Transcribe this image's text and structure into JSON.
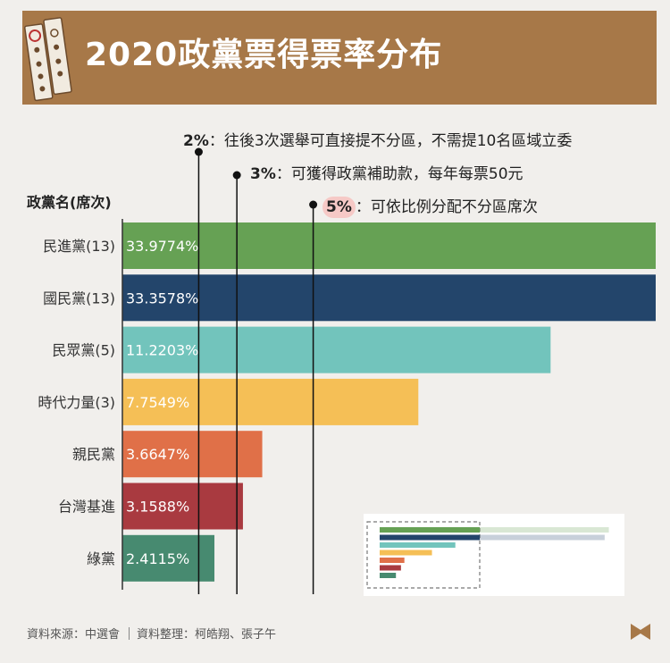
{
  "header": {
    "title": "2020政黨票得票率分布"
  },
  "thresholds": [
    {
      "pct": "2%",
      "text": "：往後3次選舉可直接提不分區，不需提10名區域立委"
    },
    {
      "pct": "3%",
      "text": "：可獲得政黨補助款，每年每票50元"
    },
    {
      "pct": "5%",
      "text": "：可依比例分配不分區席次"
    }
  ],
  "axis_title": "政黨名(席次)",
  "source": {
    "left": "資料來源：中選會",
    "right": "資料整理：柯皓翔、張子午"
  },
  "colors": {
    "header": "#a77848",
    "background": "#f1efec"
  },
  "chart_data": {
    "type": "bar",
    "orientation": "horizontal",
    "categories": [
      "民進黨(13)",
      "國民黨(13)",
      "民眾黨(5)",
      "時代力量(3)",
      "親民黨",
      "台灣基進",
      "綠黨"
    ],
    "values": [
      33.9774,
      33.3578,
      11.2203,
      7.7549,
      3.6647,
      3.1588,
      2.4115
    ],
    "value_labels": [
      "33.9774%",
      "33.3578%",
      "11.2203%",
      "7.7549%",
      "3.6647%",
      "3.1588%",
      "2.4115%"
    ],
    "colors": [
      "#66a154",
      "#23456b",
      "#72c4bc",
      "#f5bf56",
      "#e07048",
      "#a93a40",
      "#478a70"
    ],
    "reference_lines": [
      2,
      3,
      5
    ],
    "xlim": [
      0,
      11.5
    ],
    "bars_clipped_at_axis_end": true
  }
}
